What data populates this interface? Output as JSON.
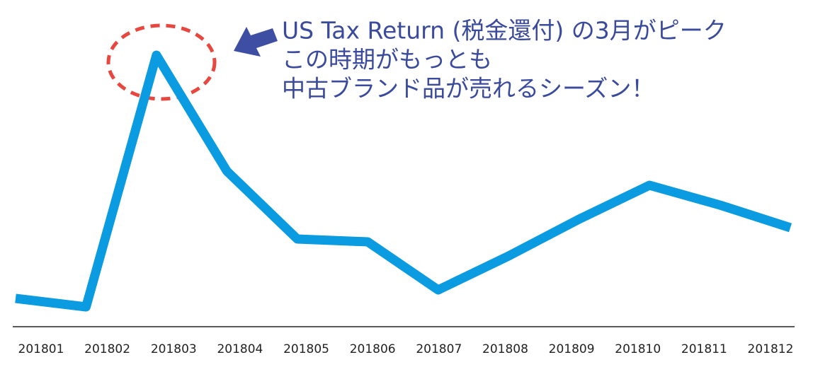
{
  "chart_data": {
    "type": "line",
    "categories": [
      "201801",
      "201802",
      "201803",
      "201804",
      "201805",
      "201806",
      "201807",
      "201808",
      "201809",
      "201810",
      "201811",
      "201812"
    ],
    "values": [
      10,
      7,
      96,
      55,
      31,
      30,
      13,
      25,
      38,
      50,
      43,
      35
    ],
    "color": "#0b9be0",
    "ylim": [
      0,
      100
    ],
    "annotation": [
      "US Tax Return (税金還付) の3月がピーク",
      "この時期がもっとも",
      "中古ブランド品が売れるシーズン！"
    ],
    "annotation_color": "#3a4a9c"
  }
}
